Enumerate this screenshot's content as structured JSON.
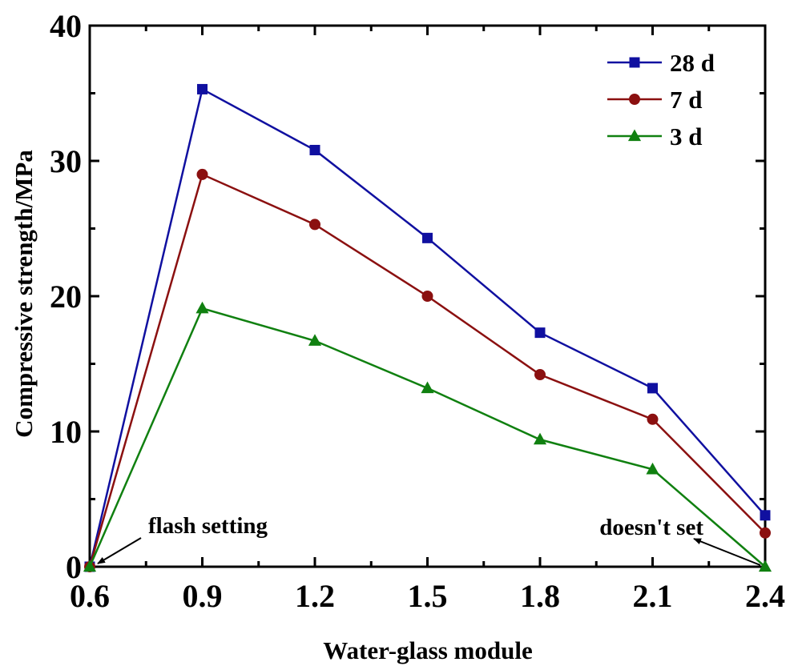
{
  "chart_data": {
    "type": "line",
    "title": "",
    "xlabel": "Water-glass module",
    "ylabel": "Compressive strength/MPa",
    "x": [
      0.6,
      0.9,
      1.2,
      1.5,
      1.8,
      2.1,
      2.4
    ],
    "x_tick_labels": [
      "0.6",
      "0.9",
      "1.2",
      "1.5",
      "1.8",
      "2.1",
      "2.4"
    ],
    "y_tick_labels": [
      "0",
      "10",
      "20",
      "30",
      "40"
    ],
    "y_ticks": [
      0,
      10,
      20,
      30,
      40
    ],
    "xlim": [
      0.6,
      2.4
    ],
    "ylim": [
      0,
      40
    ],
    "grid": false,
    "legend_position": "top-right",
    "series": [
      {
        "name": "28 d",
        "color": "#1010a0",
        "marker": "square",
        "values": [
          0,
          35.3,
          30.8,
          24.3,
          17.3,
          13.2,
          3.8
        ]
      },
      {
        "name": "7 d",
        "color": "#8b1010",
        "marker": "circle",
        "values": [
          0,
          29.0,
          25.3,
          20.0,
          14.2,
          10.9,
          2.5
        ]
      },
      {
        "name": "3 d",
        "color": "#108010",
        "marker": "triangle",
        "values": [
          0,
          19.1,
          16.7,
          13.2,
          9.4,
          7.2,
          0
        ]
      }
    ],
    "annotations": [
      {
        "text": "flash setting",
        "points_to_x": 0.6,
        "points_to_y": 0
      },
      {
        "text": "doesn't set",
        "points_to_x": 2.4,
        "points_to_y": 0
      }
    ]
  }
}
